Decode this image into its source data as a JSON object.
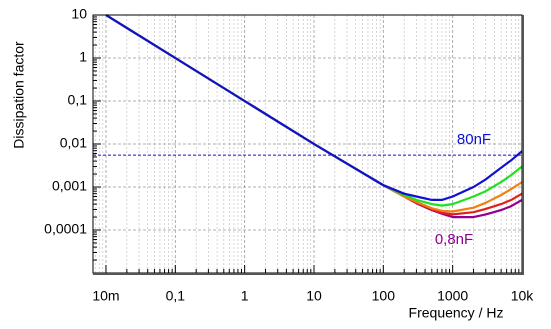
{
  "chart_data": {
    "type": "line",
    "xlabel": "Frequency / Hz",
    "ylabel": "Dissipation factor",
    "log_x": true,
    "log_y": true,
    "grid": true,
    "minor_grid": true,
    "x": [
      0.01,
      0.1,
      1,
      10,
      100,
      200,
      300,
      500,
      700,
      1000,
      2000,
      3000,
      5000,
      7000,
      10000
    ],
    "series": [
      {
        "name": "80nF",
        "color": "#1010d0",
        "values": [
          10,
          1,
          0.1,
          0.01,
          0.0011,
          0.0007,
          0.0006,
          0.0005,
          0.0005,
          0.0006,
          0.001,
          0.0015,
          0.0028,
          0.0042,
          0.0068
        ]
      },
      {
        "color": "#20e020",
        "values": [
          10,
          1,
          0.1,
          0.01,
          0.0011,
          0.00065,
          0.0005,
          0.0004,
          0.00037,
          0.0004,
          0.0006,
          0.0008,
          0.0013,
          0.0019,
          0.003
        ]
      },
      {
        "color": "#f08010",
        "values": [
          10,
          1,
          0.1,
          0.01,
          0.0011,
          0.0006,
          0.00045,
          0.00032,
          0.00028,
          0.00027,
          0.00033,
          0.00043,
          0.00065,
          0.0009,
          0.0013
        ]
      },
      {
        "color": "#e02020",
        "values": [
          10,
          1,
          0.1,
          0.01,
          0.0011,
          0.0006,
          0.00043,
          0.0003,
          0.00025,
          0.00023,
          0.00026,
          0.00031,
          0.0004,
          0.0005,
          0.0007
        ]
      },
      {
        "name": "0,8nF",
        "color": "#900090",
        "values": [
          10,
          1,
          0.1,
          0.01,
          0.0011,
          0.0006,
          0.00042,
          0.00029,
          0.00024,
          0.0002,
          0.0002,
          0.00023,
          0.00029,
          0.00036,
          0.0005
        ]
      }
    ],
    "hline": {
      "value": 0.0055,
      "color": "#1010d0"
    },
    "xlim": [
      0.0065,
      10000
    ],
    "ylim": [
      1e-05,
      10
    ],
    "xticks": [
      {
        "value": 0.01,
        "label": "10m"
      },
      {
        "value": 0.1,
        "label": "0,1"
      },
      1,
      10,
      100,
      1000,
      {
        "value": 10000,
        "label": "10k"
      }
    ],
    "yticks": [
      {
        "value": 0.0001,
        "label": "0,0001"
      },
      {
        "value": 0.001,
        "label": "0,001"
      },
      {
        "value": 0.01,
        "label": "0,01"
      },
      {
        "value": 0.1,
        "label": "0,1"
      },
      1,
      10
    ]
  }
}
